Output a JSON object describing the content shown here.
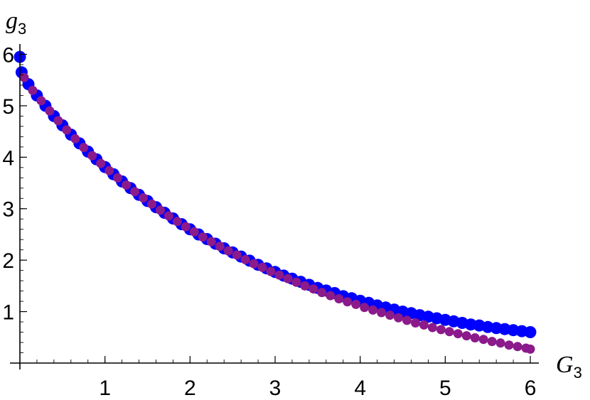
{
  "chart_data": {
    "type": "scatter",
    "xlabel": {
      "base": "G",
      "sub": "3"
    },
    "ylabel": {
      "base": "g",
      "sub": "3"
    },
    "xlim": [
      0,
      6.1
    ],
    "ylim": [
      0,
      6.2
    ],
    "x_ticks": [
      1,
      2,
      3,
      4,
      5,
      6
    ],
    "y_ticks": [
      1,
      2,
      3,
      4,
      5,
      6
    ],
    "grid": false,
    "series": [
      {
        "color": "#0000ff",
        "points": [
          [
            0.0,
            5.95
          ],
          [
            0.02,
            5.65
          ],
          [
            0.1,
            5.42
          ],
          [
            0.2,
            5.2
          ],
          [
            0.3,
            5.0
          ],
          [
            0.4,
            4.8
          ],
          [
            0.5,
            4.62
          ],
          [
            0.6,
            4.44
          ],
          [
            0.7,
            4.27
          ],
          [
            0.8,
            4.11
          ],
          [
            0.9,
            3.96
          ],
          [
            1.0,
            3.81
          ],
          [
            1.1,
            3.67
          ],
          [
            1.2,
            3.53
          ],
          [
            1.3,
            3.4
          ],
          [
            1.4,
            3.27
          ],
          [
            1.5,
            3.15
          ],
          [
            1.6,
            3.03
          ],
          [
            1.7,
            2.92
          ],
          [
            1.8,
            2.81
          ],
          [
            1.9,
            2.7
          ],
          [
            2.0,
            2.6
          ],
          [
            2.1,
            2.5
          ],
          [
            2.2,
            2.41
          ],
          [
            2.3,
            2.32
          ],
          [
            2.4,
            2.23
          ],
          [
            2.5,
            2.15
          ],
          [
            2.6,
            2.07
          ],
          [
            2.7,
            1.99
          ],
          [
            2.8,
            1.91
          ],
          [
            2.9,
            1.84
          ],
          [
            3.0,
            1.77
          ],
          [
            3.1,
            1.7
          ],
          [
            3.2,
            1.64
          ],
          [
            3.3,
            1.58
          ],
          [
            3.4,
            1.52
          ],
          [
            3.5,
            1.46
          ],
          [
            3.6,
            1.41
          ],
          [
            3.7,
            1.36
          ],
          [
            3.8,
            1.3
          ],
          [
            3.9,
            1.26
          ],
          [
            4.0,
            1.21
          ],
          [
            4.1,
            1.17
          ],
          [
            4.2,
            1.12
          ],
          [
            4.3,
            1.08
          ],
          [
            4.4,
            1.04
          ],
          [
            4.5,
            1.0
          ],
          [
            4.6,
            0.97
          ],
          [
            4.7,
            0.93
          ],
          [
            4.8,
            0.9
          ],
          [
            4.9,
            0.87
          ],
          [
            5.0,
            0.84
          ],
          [
            5.1,
            0.81
          ],
          [
            5.2,
            0.78
          ],
          [
            5.3,
            0.75
          ],
          [
            5.4,
            0.73
          ],
          [
            5.5,
            0.7
          ],
          [
            5.6,
            0.68
          ],
          [
            5.7,
            0.66
          ],
          [
            5.8,
            0.64
          ],
          [
            5.9,
            0.62
          ],
          [
            6.0,
            0.6
          ]
        ]
      },
      {
        "color": "#8b1a8b",
        "points": [
          [
            0.05,
            5.55
          ],
          [
            0.15,
            5.3
          ],
          [
            0.25,
            5.1
          ],
          [
            0.35,
            4.9
          ],
          [
            0.45,
            4.71
          ],
          [
            0.55,
            4.53
          ],
          [
            0.65,
            4.36
          ],
          [
            0.75,
            4.19
          ],
          [
            0.85,
            4.03
          ],
          [
            0.95,
            3.88
          ],
          [
            1.05,
            3.74
          ],
          [
            1.15,
            3.6
          ],
          [
            1.25,
            3.46
          ],
          [
            1.35,
            3.33
          ],
          [
            1.45,
            3.21
          ],
          [
            1.55,
            3.09
          ],
          [
            1.65,
            2.97
          ],
          [
            1.75,
            2.86
          ],
          [
            1.85,
            2.75
          ],
          [
            1.95,
            2.65
          ],
          [
            2.05,
            2.55
          ],
          [
            2.15,
            2.45
          ],
          [
            2.25,
            2.36
          ],
          [
            2.35,
            2.27
          ],
          [
            2.45,
            2.18
          ],
          [
            2.55,
            2.1
          ],
          [
            2.65,
            2.01
          ],
          [
            2.75,
            1.93
          ],
          [
            2.85,
            1.86
          ],
          [
            2.95,
            1.78
          ],
          [
            3.05,
            1.71
          ],
          [
            3.15,
            1.64
          ],
          [
            3.25,
            1.57
          ],
          [
            3.35,
            1.5
          ],
          [
            3.45,
            1.44
          ],
          [
            3.55,
            1.37
          ],
          [
            3.65,
            1.31
          ],
          [
            3.75,
            1.25
          ],
          [
            3.85,
            1.19
          ],
          [
            3.95,
            1.14
          ],
          [
            4.05,
            1.08
          ],
          [
            4.15,
            1.03
          ],
          [
            4.25,
            0.98
          ],
          [
            4.35,
            0.93
          ],
          [
            4.45,
            0.88
          ],
          [
            4.55,
            0.83
          ],
          [
            4.65,
            0.78
          ],
          [
            4.75,
            0.74
          ],
          [
            4.85,
            0.69
          ],
          [
            4.95,
            0.65
          ],
          [
            5.05,
            0.61
          ],
          [
            5.15,
            0.57
          ],
          [
            5.25,
            0.53
          ],
          [
            5.35,
            0.49
          ],
          [
            5.45,
            0.46
          ],
          [
            5.55,
            0.42
          ],
          [
            5.65,
            0.39
          ],
          [
            5.75,
            0.35
          ],
          [
            5.85,
            0.32
          ],
          [
            5.95,
            0.29
          ],
          [
            6.0,
            0.27
          ]
        ]
      }
    ]
  }
}
